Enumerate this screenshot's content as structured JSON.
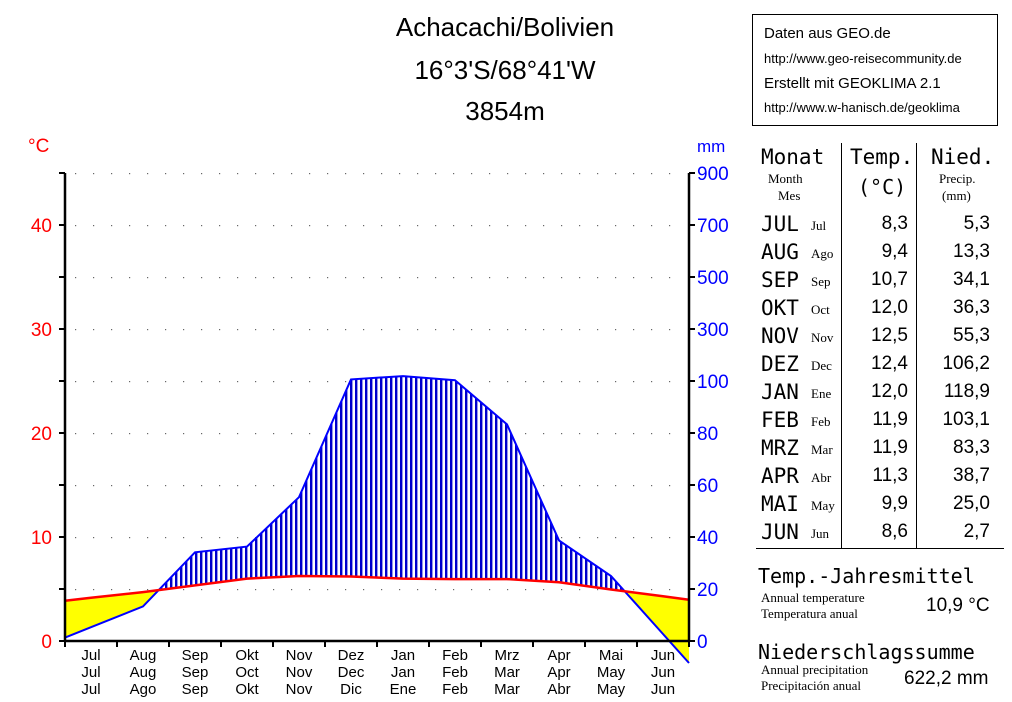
{
  "title": {
    "line1": "Achacachi/Bolivien",
    "line2": "16°3'S/68°41'W",
    "line3": "3854m"
  },
  "source": {
    "line1": "Daten aus GEO.de",
    "line2": "http://www.geo-reisecommunity.de",
    "line3": "Erstellt mit GEOKLIMA 2.1",
    "line4": "http://www.w-hanisch.de/geoklima"
  },
  "table": {
    "col_month": "Monat",
    "col_month_sub1": "Month",
    "col_month_sub2": "Mes",
    "col_temp": "Temp.",
    "col_temp_unit": "(°C)",
    "col_prec": "Nied.",
    "col_prec_sub": "Precip.",
    "col_prec_unit": "(mm)",
    "rows": [
      {
        "de": "JUL",
        "es": "Jul",
        "temp": "8,3",
        "prec": "5,3"
      },
      {
        "de": "AUG",
        "es": "Ago",
        "temp": "9,4",
        "prec": "13,3"
      },
      {
        "de": "SEP",
        "es": "Sep",
        "temp": "10,7",
        "prec": "34,1"
      },
      {
        "de": "OKT",
        "es": "Oct",
        "temp": "12,0",
        "prec": "36,3"
      },
      {
        "de": "NOV",
        "es": "Nov",
        "temp": "12,5",
        "prec": "55,3"
      },
      {
        "de": "DEZ",
        "es": "Dec",
        "temp": "12,4",
        "prec": "106,2"
      },
      {
        "de": "JAN",
        "es": "Ene",
        "temp": "12,0",
        "prec": "118,9"
      },
      {
        "de": "FEB",
        "es": "Feb",
        "temp": "11,9",
        "prec": "103,1"
      },
      {
        "de": "MRZ",
        "es": "Mar",
        "temp": "11,9",
        "prec": "83,3"
      },
      {
        "de": "APR",
        "es": "Abr",
        "temp": "11,3",
        "prec": "38,7"
      },
      {
        "de": "MAI",
        "es": "May",
        "temp": "9,9",
        "prec": "25,0"
      },
      {
        "de": "JUN",
        "es": "Jun",
        "temp": "8,6",
        "prec": "2,7"
      }
    ]
  },
  "annual": {
    "temp_title": "Temp.-Jahresmittel",
    "temp_en": "Annual temperature",
    "temp_es": "Temperatura  anual",
    "temp_value": "10,9 °C",
    "prec_title": "Niederschlagssumme",
    "prec_en": "Annual precipitation",
    "prec_es": "Precipitación  anual",
    "prec_value": "622,2 mm"
  },
  "colors": {
    "temperature": "#ff0000",
    "precipitation": "#0000ff",
    "arid_fill": "#ffff00",
    "humid_fill": "#0000cc"
  },
  "chart_data": {
    "type": "line",
    "left_unit": "°C",
    "right_unit": "mm",
    "left_ticks": [
      "0",
      "10",
      "20",
      "30",
      "40"
    ],
    "right_ticks": [
      "0",
      "20",
      "40",
      "60",
      "80",
      "100",
      "300",
      "500",
      "700",
      "900"
    ],
    "months_de": [
      "Jul",
      "Aug",
      "Sep",
      "Okt",
      "Nov",
      "Dez",
      "Jan",
      "Feb",
      "Mrz",
      "Apr",
      "Mai",
      "Jun"
    ],
    "months_en": [
      "Jul",
      "Aug",
      "Sep",
      "Oct",
      "Nov",
      "Dec",
      "Jan",
      "Feb",
      "Mar",
      "Apr",
      "May",
      "Jun"
    ],
    "months_es": [
      "Jul",
      "Ago",
      "Sep",
      "Okt",
      "Nov",
      "Dic",
      "Ene",
      "Feb",
      "Mar",
      "Abr",
      "May",
      "Jun"
    ],
    "series": [
      {
        "name": "Temp.",
        "unit": "°C",
        "values": [
          8.3,
          9.4,
          10.7,
          12.0,
          12.5,
          12.4,
          12.0,
          11.9,
          11.9,
          11.3,
          9.9,
          8.6
        ]
      },
      {
        "name": "Nied.",
        "unit": "mm",
        "values": [
          5.3,
          13.3,
          34.1,
          36.3,
          55.3,
          106.2,
          118.9,
          103.1,
          83.3,
          38.7,
          25.0,
          2.7
        ]
      }
    ],
    "ylim_temp": [
      0,
      90
    ],
    "ylim_prec": [
      0,
      900
    ]
  }
}
